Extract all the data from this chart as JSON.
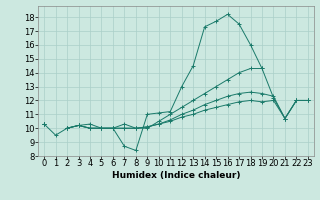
{
  "x": [
    0,
    1,
    2,
    3,
    4,
    5,
    6,
    7,
    8,
    9,
    10,
    11,
    12,
    13,
    14,
    15,
    16,
    17,
    18,
    19,
    20,
    21,
    22,
    23
  ],
  "line1": [
    10.3,
    9.5,
    10.0,
    10.2,
    10.3,
    10.0,
    10.0,
    8.7,
    8.4,
    11.0,
    11.1,
    11.2,
    13.0,
    14.5,
    17.3,
    17.7,
    18.2,
    17.5,
    16.0,
    14.3,
    null,
    null,
    null,
    null
  ],
  "line2": [
    10.3,
    null,
    10.0,
    10.2,
    10.0,
    10.0,
    10.0,
    10.3,
    10.0,
    10.0,
    10.5,
    11.0,
    11.5,
    12.0,
    12.5,
    13.0,
    13.5,
    14.0,
    14.3,
    14.3,
    12.2,
    10.7,
    12.0,
    12.0
  ],
  "line3": [
    10.3,
    null,
    10.0,
    10.2,
    10.0,
    10.0,
    10.0,
    10.0,
    10.0,
    10.1,
    10.3,
    10.6,
    11.0,
    11.3,
    11.7,
    12.0,
    12.3,
    12.5,
    12.6,
    12.5,
    12.3,
    10.7,
    12.0,
    12.0
  ],
  "line4": [
    10.3,
    null,
    10.0,
    10.2,
    10.0,
    10.0,
    10.0,
    10.0,
    10.0,
    10.1,
    10.3,
    10.5,
    10.8,
    11.0,
    11.3,
    11.5,
    11.7,
    11.9,
    12.0,
    11.9,
    12.0,
    10.7,
    12.0,
    12.0
  ],
  "color": "#1a7a6a",
  "bg_color": "#cce8e0",
  "grid_color": "#aacfc8",
  "xlabel": "Humidex (Indice chaleur)",
  "ylabel_ticks": [
    8,
    9,
    10,
    11,
    12,
    13,
    14,
    15,
    16,
    17,
    18
  ],
  "xtick_labels": [
    "0",
    "1",
    "2",
    "3",
    "4",
    "5",
    "6",
    "7",
    "8",
    "9",
    "10",
    "11",
    "12",
    "13",
    "14",
    "15",
    "16",
    "17",
    "18",
    "19",
    "20",
    "21",
    "22",
    "23"
  ],
  "xlim": [
    -0.5,
    23.5
  ],
  "ylim": [
    8,
    18.8
  ],
  "xlabel_fontsize": 6.5,
  "tick_fontsize": 6
}
